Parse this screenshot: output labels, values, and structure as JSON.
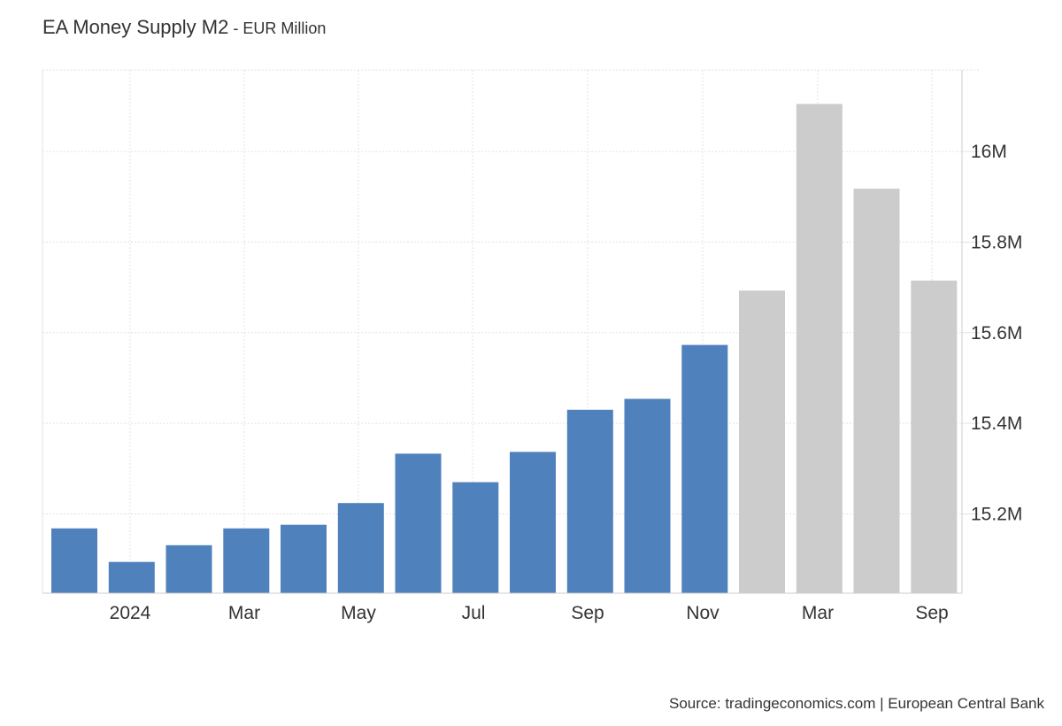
{
  "header": {
    "title": "EA Money Supply M2",
    "separator": " - ",
    "subtitle": "EUR Million"
  },
  "footer": {
    "source": "Source: tradingeconomics.com | European Central Bank"
  },
  "colors": {
    "actual": "#4f81bd",
    "forecast": "#cccccc",
    "grid": "#e3e3e3",
    "axis": "#cccccc",
    "text": "#333333"
  },
  "chart_data": {
    "type": "bar",
    "title": "EA Money Supply M2",
    "subtitle": "EUR Million",
    "xlabel": "",
    "ylabel": "",
    "ylim": [
      15.025,
      16.18
    ],
    "y_axis_position": "right",
    "grid": true,
    "legend": "none",
    "x_tick_labels": [
      "2024",
      "Mar",
      "May",
      "Jul",
      "Sep",
      "Nov",
      "Mar",
      "Sep"
    ],
    "y_ticks": [
      {
        "value": 15.2,
        "label": "15.2M"
      },
      {
        "value": 15.4,
        "label": "15.4M"
      },
      {
        "value": 15.6,
        "label": "15.6M"
      },
      {
        "value": 15.8,
        "label": "15.8M"
      },
      {
        "value": 16.0,
        "label": "16M"
      }
    ],
    "series": [
      {
        "values": [
          15.168,
          15.094,
          15.131,
          15.168,
          15.176,
          15.224,
          15.333,
          15.27,
          15.337,
          15.43,
          15.454,
          15.573,
          15.693,
          16.105,
          15.918,
          15.715
        ],
        "forecast": [
          false,
          false,
          false,
          false,
          false,
          false,
          false,
          false,
          false,
          false,
          false,
          false,
          true,
          true,
          true,
          true
        ]
      }
    ]
  }
}
